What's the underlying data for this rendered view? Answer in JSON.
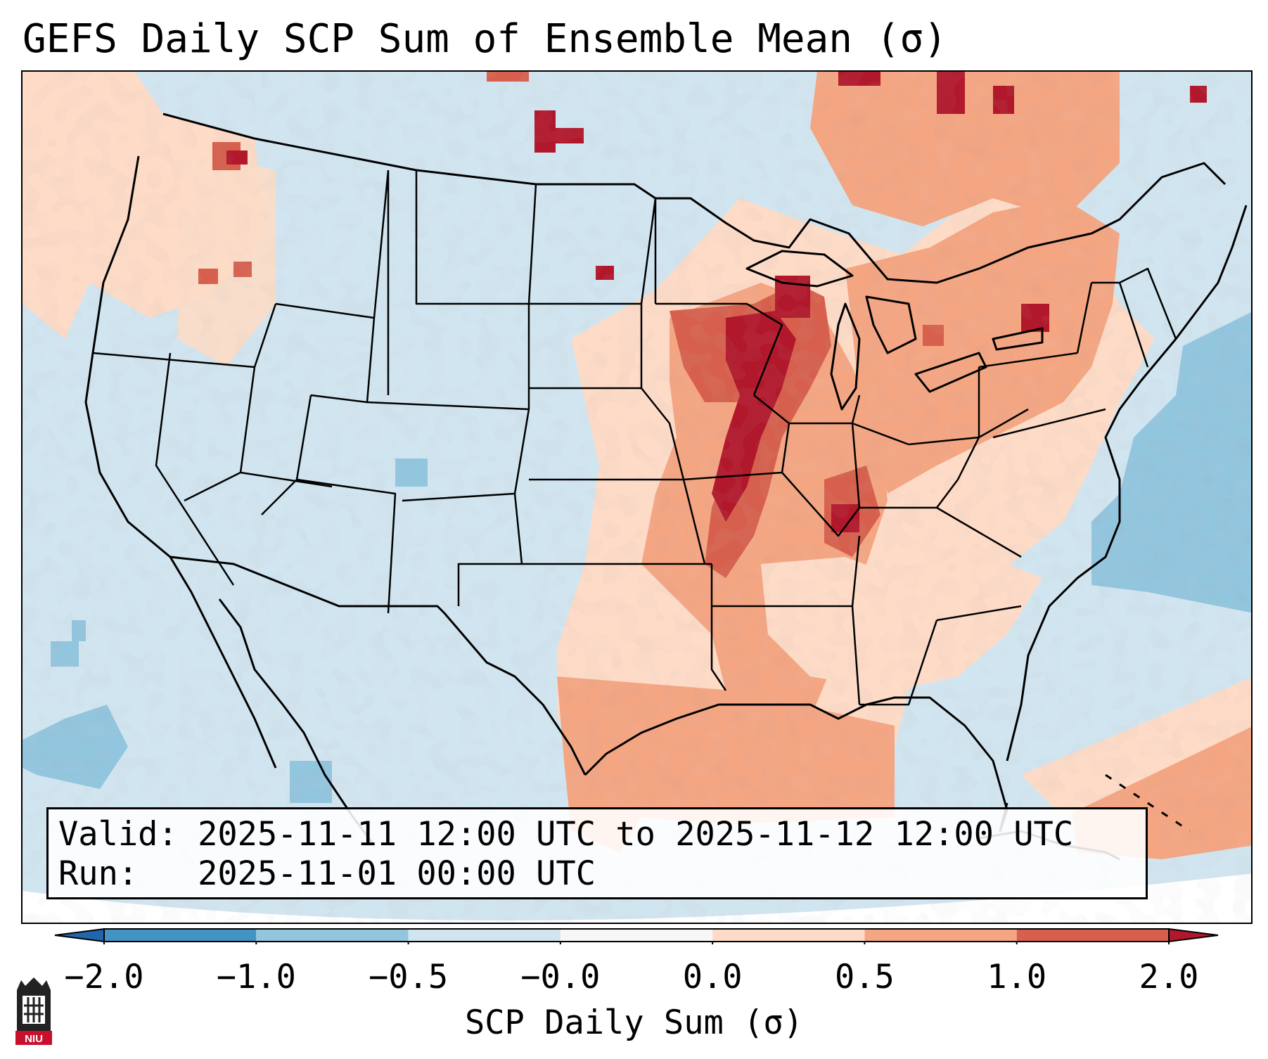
{
  "title": "GEFS Daily SCP Sum of Ensemble Mean (σ)",
  "info": {
    "valid_line": "Valid: 2025-11-11 12:00 UTC to 2025-11-12 12:00 UTC",
    "run_line": "Run:   2025-11-01 00:00 UTC"
  },
  "colorbar": {
    "label": "SCP Daily Sum (σ)",
    "ticks": [
      "−2.0",
      "−1.0",
      "−0.5",
      "−0.0",
      "0.0",
      "0.5",
      "1.0",
      "2.0"
    ],
    "bins": [
      {
        "range": "< -2.0",
        "color": "#2166ac"
      },
      {
        "range": "-2.0 to -1.0",
        "color": "#4393c3"
      },
      {
        "range": "-1.0 to -0.5",
        "color": "#92c5de"
      },
      {
        "range": "-0.5 to -0.0",
        "color": "#d1e5f0"
      },
      {
        "range": "-0.0 to 0.0",
        "color": "#f7f7f7"
      },
      {
        "range": "0.0 to 0.5",
        "color": "#fddbc7"
      },
      {
        "range": "0.5 to 1.0",
        "color": "#f4a582"
      },
      {
        "range": "1.0 to 2.0",
        "color": "#d6604d"
      },
      {
        "range": "> 2.0",
        "color": "#b2182b"
      }
    ]
  },
  "map": {
    "region": "Contiguous United States",
    "background_color": "#d1e5f0",
    "anomaly_regions": [
      {
        "name": "Pacific Northwest coast",
        "level": 0.3,
        "color": "#fddbc7"
      },
      {
        "name": "Eastern Oregon / Idaho",
        "level": 0.3,
        "color": "#fddbc7"
      },
      {
        "name": "Mississippi Valley axis",
        "level": 1.5,
        "color": "#d6604d"
      },
      {
        "name": "Upper Midwest core",
        "level": 2.2,
        "color": "#b2182b"
      },
      {
        "name": "Ohio Valley",
        "level": 0.7,
        "color": "#f4a582"
      },
      {
        "name": "Great Lakes / Northeast",
        "level": 0.8,
        "color": "#f4a582"
      },
      {
        "name": "Southeast",
        "level": 0.3,
        "color": "#fddbc7"
      },
      {
        "name": "Gulf of Mexico",
        "level": 0.7,
        "color": "#f4a582"
      },
      {
        "name": "Western Atlantic",
        "level": -0.7,
        "color": "#92c5de"
      },
      {
        "name": "Eastern Pacific",
        "level": -0.7,
        "color": "#92c5de"
      }
    ]
  },
  "logo": {
    "text": "NIU"
  }
}
